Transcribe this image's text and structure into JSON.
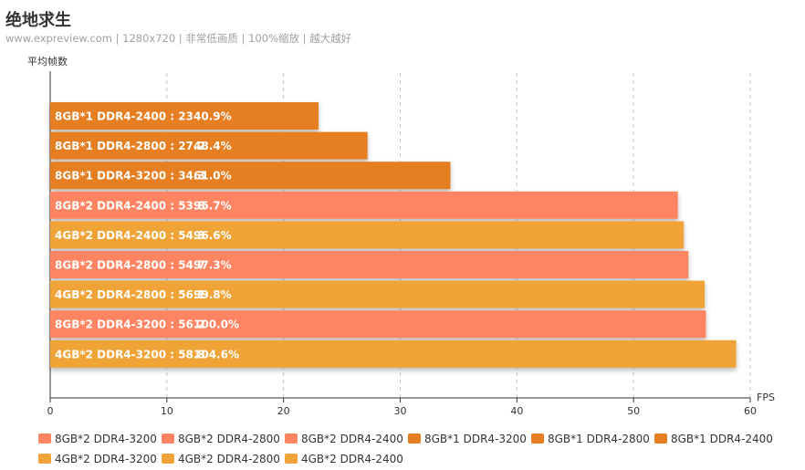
{
  "title": "绝地求生",
  "subtitle": "www.expreview.com | 1280x720 | 非常低画质 | 100%缩放 | 越大越好",
  "chart_data": {
    "type": "bar",
    "orientation": "horizontal",
    "ylabel": "平均帧数",
    "xlabel": "FPS",
    "xlim": [
      0,
      60
    ],
    "xticks": [
      "0",
      "10",
      "20",
      "30",
      "40",
      "50",
      "60"
    ],
    "grid": "vertical-dashed",
    "legend_position": "bottom",
    "bars": [
      {
        "label": "8GB*1 DDR4-2400 : 23",
        "value": 23,
        "percent": "40.9%",
        "series": "8GB*1 DDR4-2400"
      },
      {
        "label": "8GB*1 DDR4-2800 : 27.2",
        "value": 27.2,
        "percent": "48.4%",
        "series": "8GB*1 DDR4-2800"
      },
      {
        "label": "8GB*1 DDR4-3200 : 34.3",
        "value": 34.3,
        "percent": "61.0%",
        "series": "8GB*1 DDR4-3200"
      },
      {
        "label": "8GB*2 DDR4-2400 : 53.8",
        "value": 53.8,
        "percent": "95.7%",
        "series": "8GB*2 DDR4-2400"
      },
      {
        "label": "4GB*2 DDR4-2400 : 54.3",
        "value": 54.3,
        "percent": "96.6%",
        "series": "4GB*2 DDR4-2400"
      },
      {
        "label": "8GB*2 DDR4-2800 : 54.7",
        "value": 54.7,
        "percent": "97.3%",
        "series": "8GB*2 DDR4-2800"
      },
      {
        "label": "4GB*2 DDR4-2800 : 56.1",
        "value": 56.1,
        "percent": "99.8%",
        "series": "4GB*2 DDR4-2800"
      },
      {
        "label": "8GB*2 DDR4-3200 : 56.2",
        "value": 56.2,
        "percent": "100.0%",
        "series": "8GB*2 DDR4-3200"
      },
      {
        "label": "4GB*2 DDR4-3200 : 58.8",
        "value": 58.8,
        "percent": "104.6%",
        "series": "4GB*2 DDR4-3200"
      }
    ],
    "legend": [
      {
        "name": "8GB*2 DDR4-3200",
        "color": "#ff8562"
      },
      {
        "name": "8GB*2 DDR4-2800",
        "color": "#ff8562"
      },
      {
        "name": "8GB*2 DDR4-2400",
        "color": "#ff8562"
      },
      {
        "name": "8GB*1 DDR4-3200",
        "color": "#e67e22"
      },
      {
        "name": "8GB*1 DDR4-2800",
        "color": "#e67e22"
      },
      {
        "name": "8GB*1 DDR4-2400",
        "color": "#e67e22"
      },
      {
        "name": "4GB*2 DDR4-3200",
        "color": "#f0a438"
      },
      {
        "name": "4GB*2 DDR4-2800",
        "color": "#f0a438"
      },
      {
        "name": "4GB*2 DDR4-2400",
        "color": "#f0a438"
      }
    ]
  }
}
